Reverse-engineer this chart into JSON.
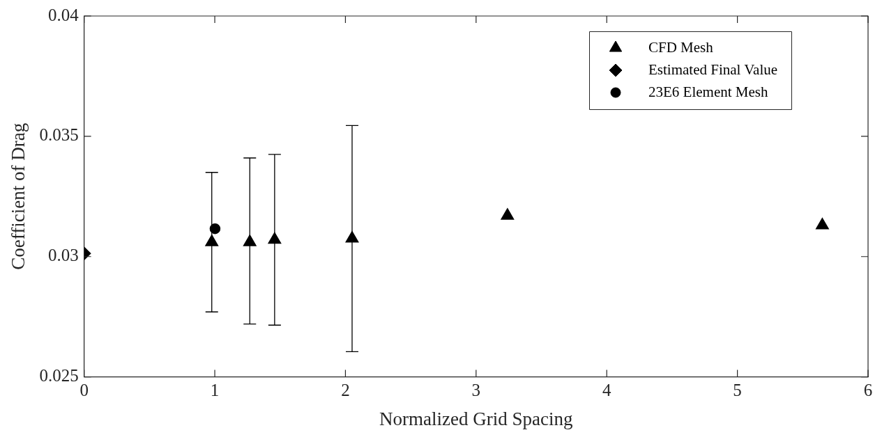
{
  "chart_data": {
    "type": "scatter",
    "xlabel": "Normalized Grid Spacing",
    "ylabel": "Coefficient of Drag",
    "xlim": [
      0,
      6
    ],
    "xticks": [
      0,
      1,
      2,
      3,
      4,
      5,
      6
    ],
    "ylim": [
      0.025,
      0.04
    ],
    "yticks": [
      0.025,
      0.03,
      0.035,
      0.04
    ],
    "grid": false,
    "legend": "top right",
    "series": [
      {
        "name": "CFD Mesh",
        "color": "#000000",
        "marker": "triangle",
        "x": [
          0.977,
          1.268,
          1.458,
          2.051,
          3.24,
          5.65
        ],
        "values": [
          0.0306,
          0.0306,
          0.0307,
          0.03075,
          0.0317,
          0.0313
        ],
        "errors": [
          [
            0.0277,
            0.0335
          ],
          [
            0.0272,
            0.0341
          ],
          [
            0.02715,
            0.03425
          ],
          [
            0.02605,
            0.03545
          ],
          null,
          null
        ]
      },
      {
        "name": "Estimated Final Value",
        "color": "#000000",
        "marker": "diamond",
        "x": [
          0
        ],
        "values": [
          0.03013
        ]
      },
      {
        "name": "23E6 Element Mesh",
        "color": "#000000",
        "marker": "circle",
        "x": [
          1.002
        ],
        "values": [
          0.03116
        ]
      }
    ]
  }
}
